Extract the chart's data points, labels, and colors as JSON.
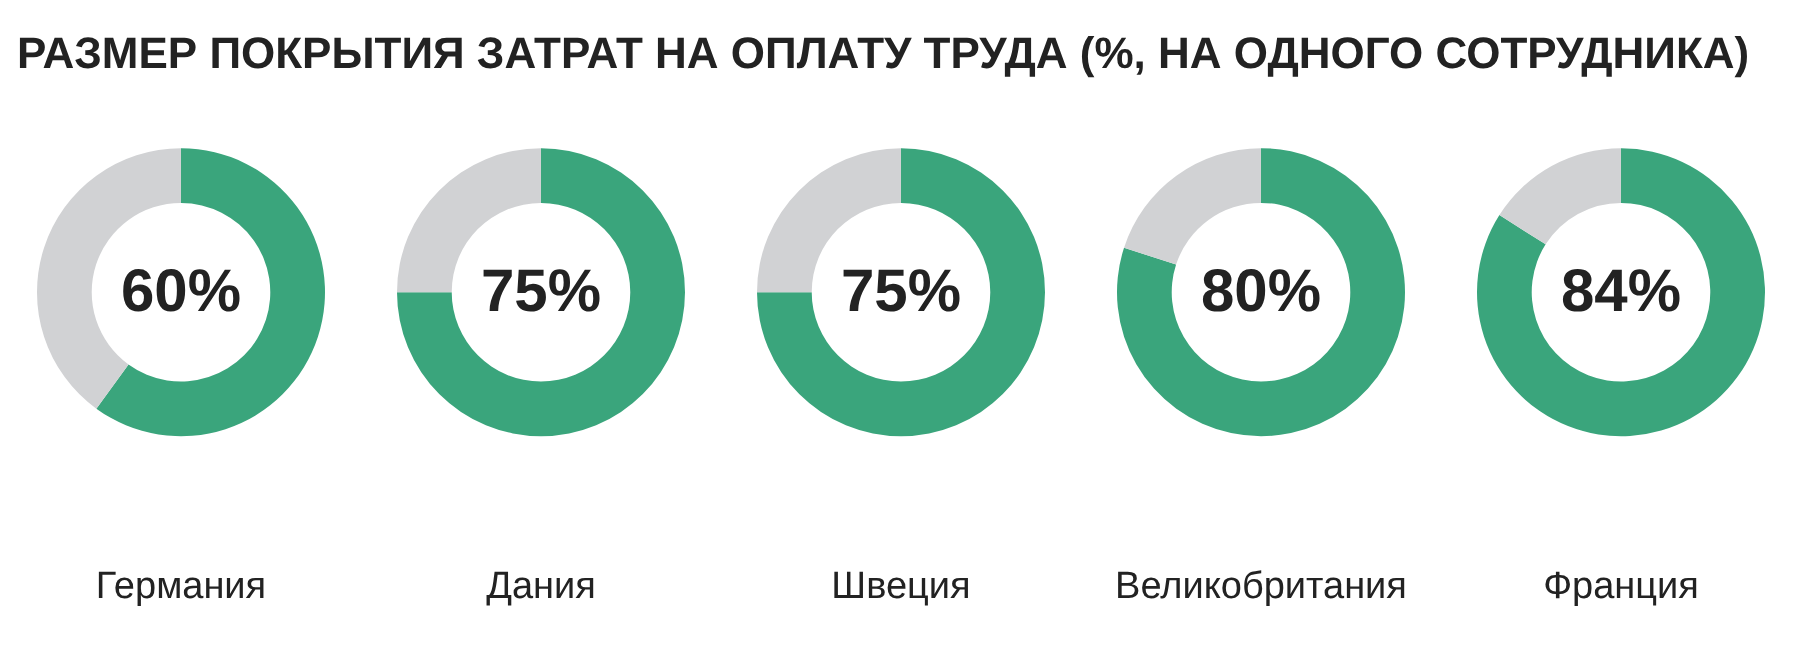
{
  "chart_data": [
    {
      "type": "donut",
      "title": "РАЗМЕР ПОКРЫТИЯ ЗАТРАТ НА ОПЛАТУ ТРУДА (%, НА ОДНОГО СОТРУДНИКА)",
      "xlabel": "Германия",
      "categories": [
        null,
        null
      ],
      "values": [
        60,
        40
      ],
      "colors": [
        "#3aa57c",
        "#d1d2d4"
      ],
      "value_labels": [
        "60%",
        null
      ]
    },
    {
      "type": "donut",
      "xlabel": "Дания",
      "categories": [
        null,
        null
      ],
      "values": [
        75,
        25
      ],
      "colors": [
        "#3aa57c",
        "#d1d2d4"
      ],
      "value_labels": [
        "75%",
        null
      ]
    },
    {
      "type": "donut",
      "xlabel": "Швеция",
      "categories": [
        null,
        null
      ],
      "values": [
        75,
        25
      ],
      "colors": [
        "#3aa57c",
        "#d1d2d4"
      ],
      "value_labels": [
        "75%",
        null
      ]
    },
    {
      "type": "donut",
      "xlabel": "Великобритания",
      "categories": [
        null,
        null
      ],
      "values": [
        80,
        20
      ],
      "colors": [
        "#3aa57c",
        "#d1d2d4"
      ],
      "value_labels": [
        "80%",
        null
      ]
    },
    {
      "type": "donut",
      "xlabel": "Франция",
      "categories": [
        null,
        null
      ],
      "values": [
        84,
        16
      ],
      "colors": [
        "#3aa57c",
        "#d1d2d4"
      ],
      "value_labels": [
        "84%",
        null
      ]
    }
  ]
}
